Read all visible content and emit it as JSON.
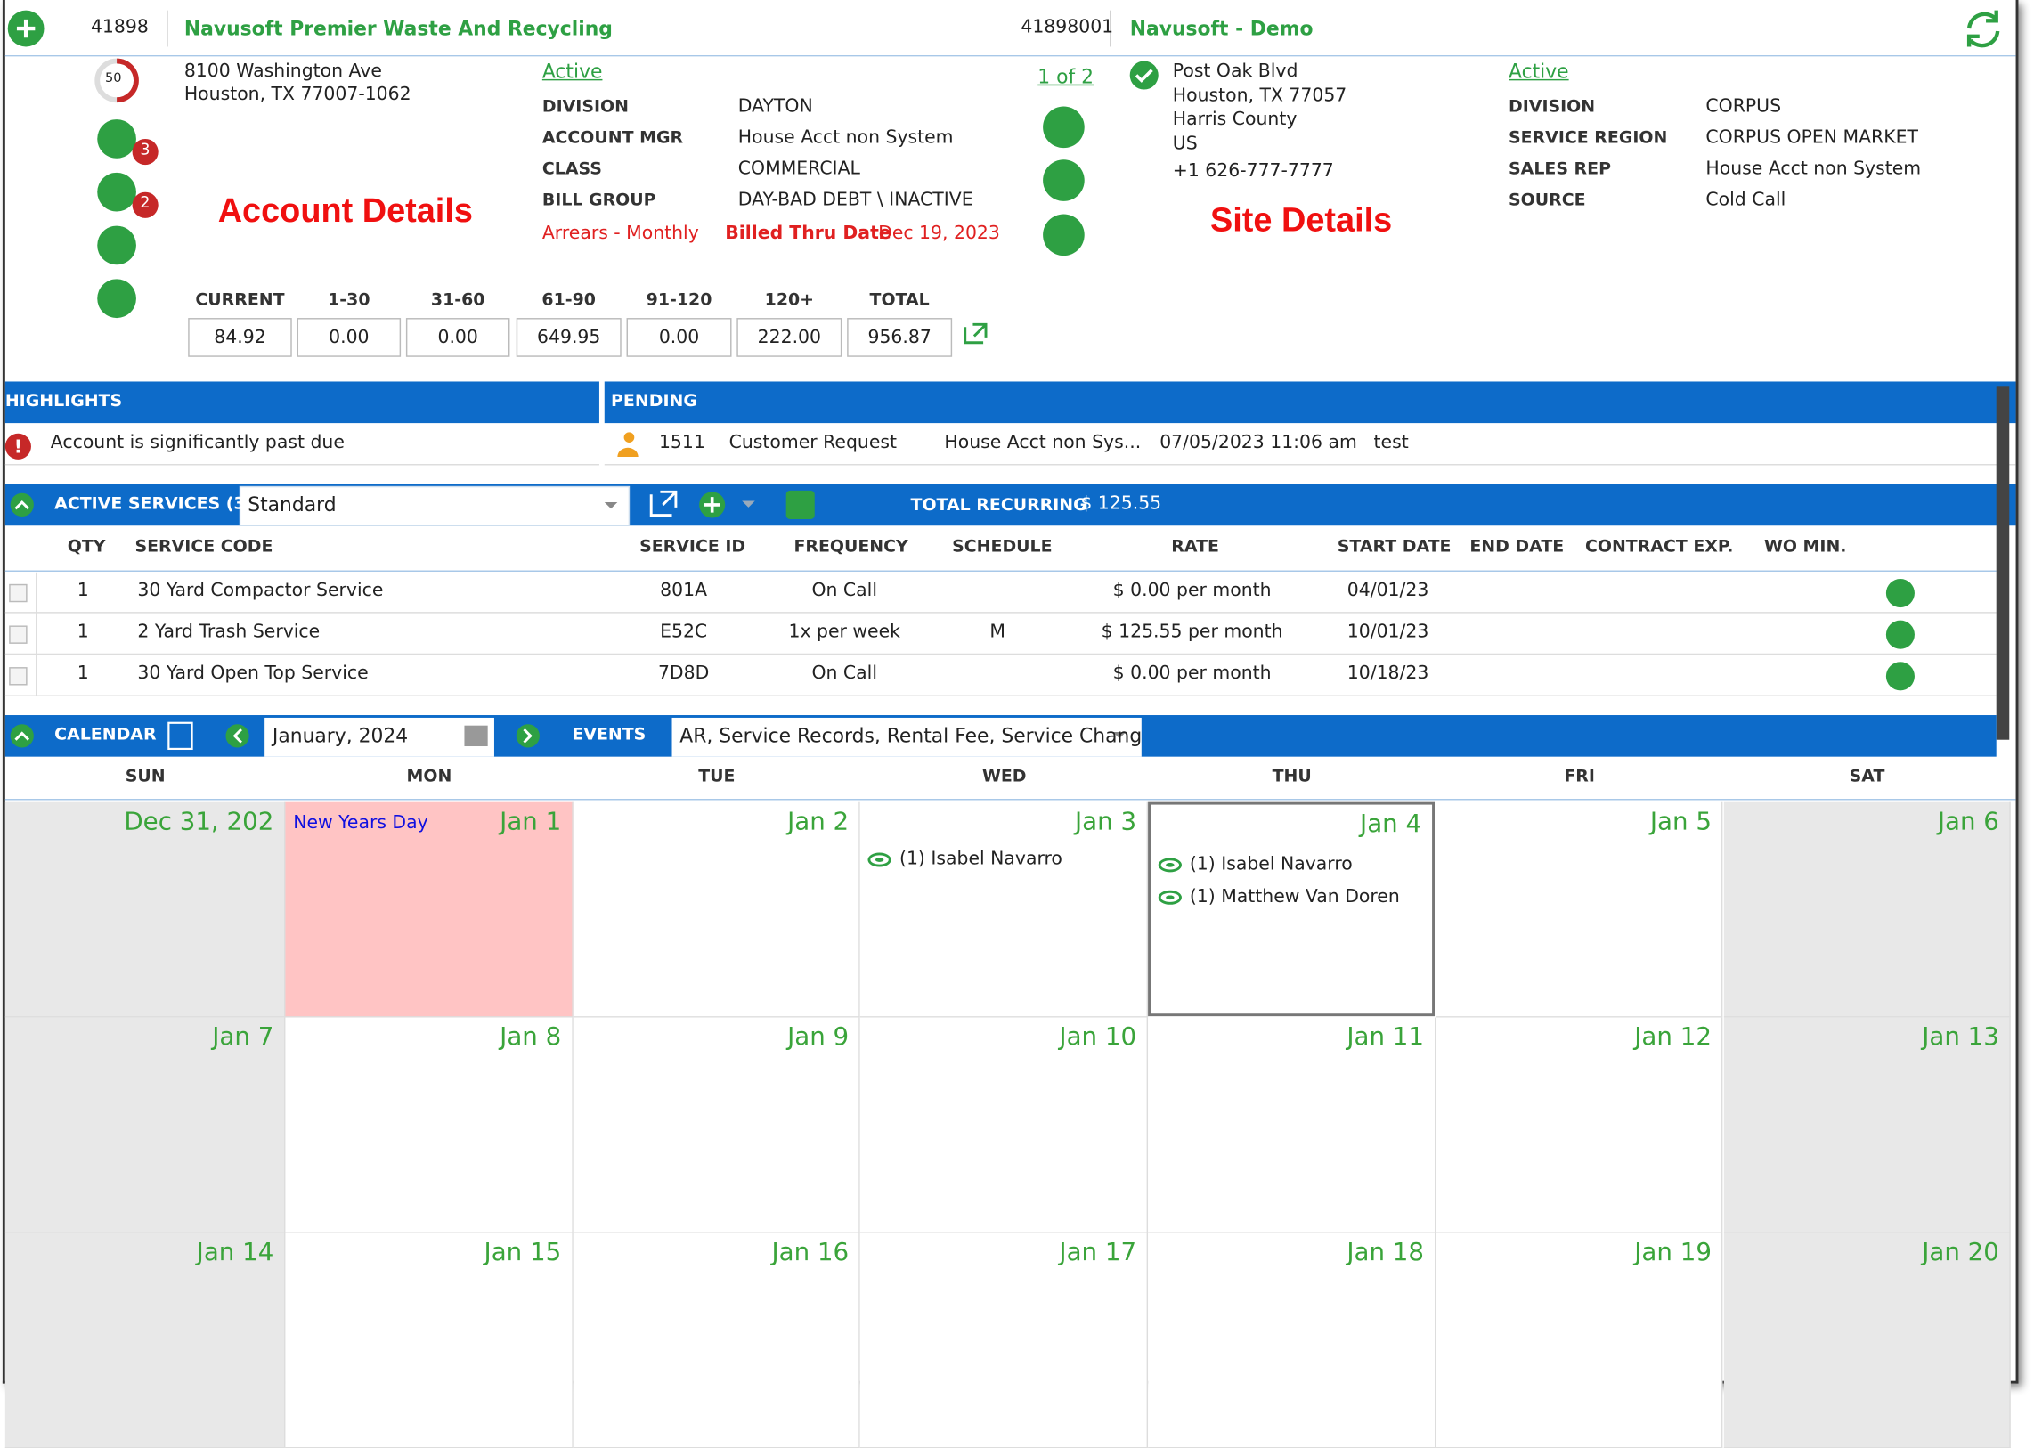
{
  "header": {
    "account_id": "41898",
    "account_name": "Navusoft Premier Waste And Recycling",
    "site_id": "41898001",
    "site_name": "Navusoft - Demo"
  },
  "account": {
    "score": "50",
    "icon_badges": [
      "3",
      "2"
    ],
    "address": [
      "8100 Washington Ave",
      "Houston, TX 77007-1062"
    ],
    "status": "Active",
    "fields": [
      {
        "label": "DIVISION",
        "value": "DAYTON"
      },
      {
        "label": "ACCOUNT MGR",
        "value": "House Acct non System"
      },
      {
        "label": "CLASS",
        "value": "COMMERCIAL"
      },
      {
        "label": "BILL GROUP",
        "value": "DAY-BAD DEBT \\ INACTIVE"
      }
    ],
    "arrears": "Arrears - Monthly",
    "billed_thru_label": "Billed Thru Date",
    "billed_thru_value": "Dec 19, 2023",
    "annotation": "Account Details"
  },
  "aging": {
    "headers": [
      "CURRENT",
      "1-30",
      "31-60",
      "61-90",
      "91-120",
      "120+",
      "TOTAL"
    ],
    "values": [
      "84.92",
      "0.00",
      "0.00",
      "649.95",
      "0.00",
      "222.00",
      "956.87"
    ]
  },
  "site": {
    "pager": "1 of 2",
    "address": [
      "Post Oak Blvd",
      "Houston, TX 77057",
      "Harris County",
      "US"
    ],
    "phone": "+1 626-777-7777",
    "status": "Active",
    "fields": [
      {
        "label": "DIVISION",
        "value": "CORPUS"
      },
      {
        "label": "SERVICE REGION",
        "value": "CORPUS OPEN MARKET"
      },
      {
        "label": "SALES REP",
        "value": "House Acct non System"
      },
      {
        "label": "SOURCE",
        "value": "Cold Call"
      }
    ],
    "annotation": "Site Details"
  },
  "highlights": {
    "title": "HIGHLIGHTS",
    "items": [
      "Account is significantly past due"
    ]
  },
  "pending": {
    "title": "PENDING",
    "rows": [
      [
        "1511",
        "Customer Request",
        "House Acct non Sys...",
        "07/05/2023 11:06 am",
        "test"
      ]
    ]
  },
  "services": {
    "title": "ACTIVE SERVICES (3)",
    "filter": "Standard",
    "total_label": "TOTAL RECURRING",
    "total_value": "$ 125.55",
    "columns": [
      "QTY",
      "SERVICE CODE",
      "SERVICE ID",
      "FREQUENCY",
      "SCHEDULE",
      "RATE",
      "START DATE",
      "END DATE",
      "CONTRACT EXP.",
      "WO MIN."
    ],
    "rows": [
      [
        "1",
        "30 Yard Compactor Service",
        "801A",
        "On Call",
        "",
        "$ 0.00 per month",
        "04/01/23",
        "",
        "",
        ""
      ],
      [
        "1",
        "2 Yard Trash Service",
        "E52C",
        "1x per week",
        "M",
        "$ 125.55 per month",
        "10/01/23",
        "",
        "",
        ""
      ],
      [
        "1",
        "30 Yard Open Top Service",
        "7D8D",
        "On Call",
        "",
        "$ 0.00 per month",
        "10/18/23",
        "",
        "",
        ""
      ]
    ]
  },
  "calendar": {
    "title": "CALENDAR",
    "month": "January, 2024",
    "events_label": "EVENTS",
    "events_filter": "AR, Service Records, Rental Fee, Service Chang",
    "weekdays": [
      "SUN",
      "MON",
      "TUE",
      "WED",
      "THU",
      "FRI",
      "SAT"
    ],
    "weeks": [
      [
        {
          "date": "Dec 31, 202"
        },
        {
          "date": "Jan 1",
          "holiday": "New Years Day"
        },
        {
          "date": "Jan 2"
        },
        {
          "date": "Jan 3",
          "events": [
            "(1) Isabel Navarro"
          ]
        },
        {
          "date": "Jan 4",
          "events": [
            "(1) Isabel Navarro",
            "(1) Matthew Van Doren"
          ]
        },
        {
          "date": "Jan 5"
        },
        {
          "date": "Jan 6"
        }
      ],
      [
        {
          "date": "Jan 7"
        },
        {
          "date": "Jan 8"
        },
        {
          "date": "Jan 9"
        },
        {
          "date": "Jan 10"
        },
        {
          "date": "Jan 11"
        },
        {
          "date": "Jan 12"
        },
        {
          "date": "Jan 13"
        }
      ],
      [
        {
          "date": "Jan 14"
        },
        {
          "date": "Jan 15"
        },
        {
          "date": "Jan 16"
        },
        {
          "date": "Jan 17"
        },
        {
          "date": "Jan 18"
        },
        {
          "date": "Jan 19"
        },
        {
          "date": "Jan 20"
        }
      ]
    ]
  }
}
